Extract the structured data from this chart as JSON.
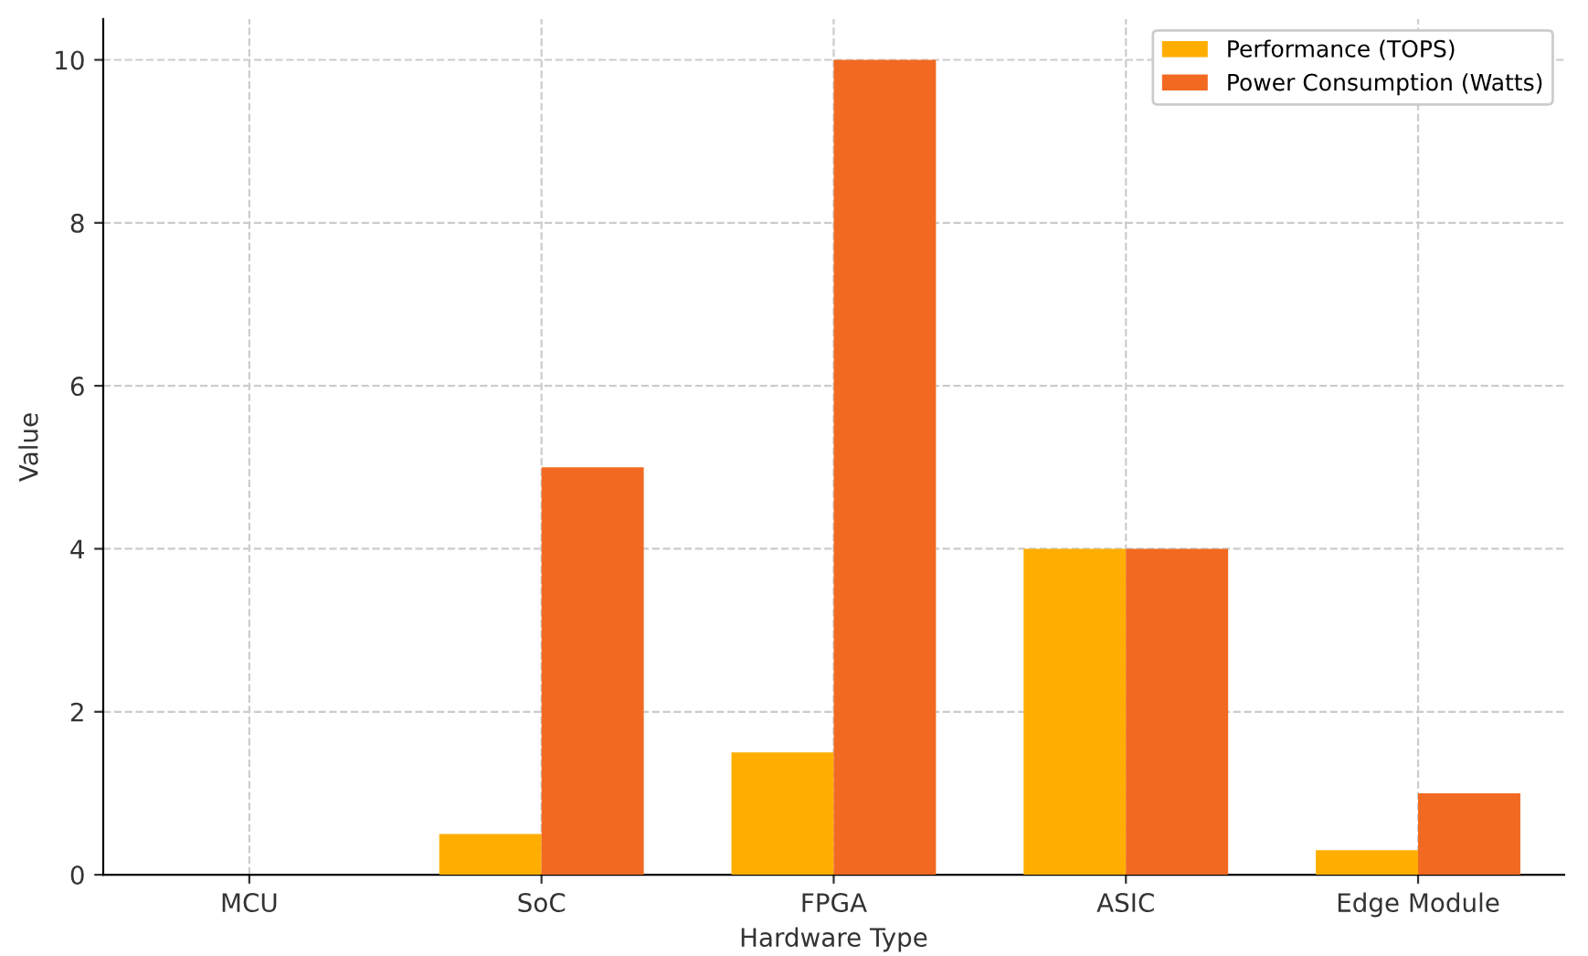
{
  "chart_data": {
    "type": "bar",
    "xlabel": "Hardware Type",
    "ylabel": "Value",
    "categories": [
      "MCU",
      "SoC",
      "FPGA",
      "ASIC",
      "Edge Module"
    ],
    "series": [
      {
        "name": "Performance (TOPS)",
        "color": "#ffae00",
        "values": [
          0,
          0.5,
          1.5,
          4,
          0.3
        ]
      },
      {
        "name": "Power Consumption (Watts)",
        "color": "#f26a22",
        "values": [
          0,
          5,
          10,
          4,
          1
        ]
      }
    ],
    "ylim": [
      0,
      10.5
    ],
    "yticks": [
      0,
      2,
      4,
      6,
      8,
      10
    ],
    "grid": true,
    "legend": "top right"
  }
}
